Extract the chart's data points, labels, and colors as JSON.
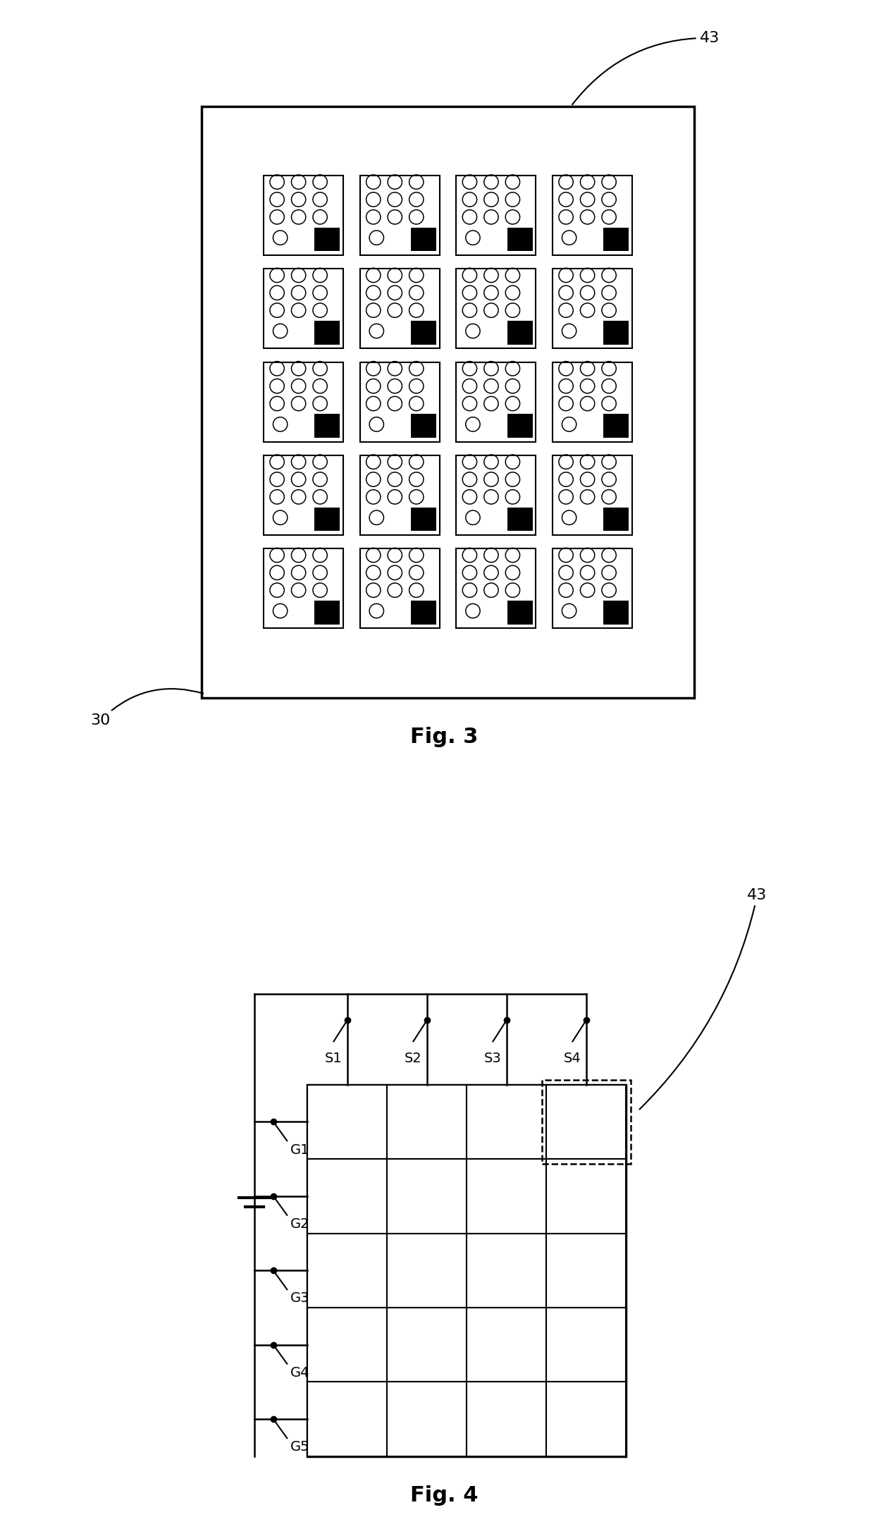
{
  "fig3": {
    "title": "Fig. 3",
    "label_30": "30",
    "label_43": "43",
    "grid_rows": 5,
    "grid_cols": 4
  },
  "fig4": {
    "title": "Fig. 4",
    "grid_rows": 5,
    "grid_cols": 4,
    "label_43": "43",
    "gate_labels": [
      "G1",
      "G2",
      "G3",
      "G4",
      "G5"
    ],
    "source_labels": [
      "S1",
      "S2",
      "S3",
      "S4"
    ]
  },
  "bg_color": "#ffffff",
  "line_color": "#000000",
  "font_size_title": 22,
  "font_size_label": 16,
  "font_size_small": 14
}
